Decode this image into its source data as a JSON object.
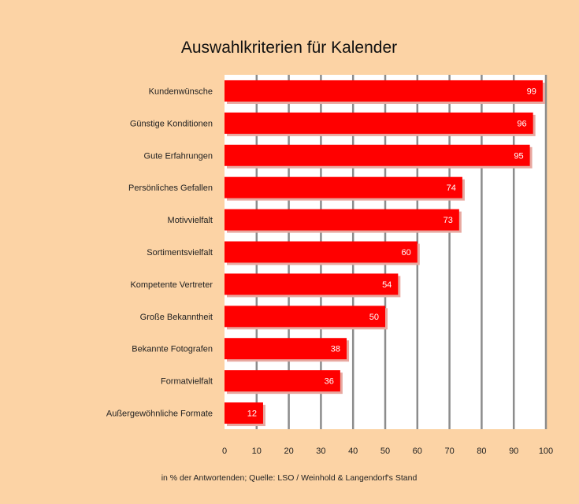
{
  "chart_data": {
    "type": "bar",
    "orientation": "horizontal",
    "title": "Auswahlkriterien für Kalender",
    "categories": [
      "Kundenwünsche",
      "Günstige Konditionen",
      "Gute Erfahrungen",
      "Persönliches Gefallen",
      "Motivvielfalt",
      "Sortimentsvielfalt",
      "Kompetente Vertreter",
      "Große Bekanntheit",
      "Bekannte Fotografen",
      "Formatvielfalt",
      "Außergewöhnliche Formate"
    ],
    "values": [
      99,
      96,
      95,
      74,
      73,
      60,
      54,
      50,
      38,
      36,
      12
    ],
    "value_labels": [
      "99",
      "96",
      "95",
      "74",
      "73",
      "60",
      "54",
      "50",
      "38",
      "36",
      "12"
    ],
    "xlim": [
      0,
      100
    ],
    "x_ticks": [
      "0",
      "10",
      "20",
      "30",
      "40",
      "50",
      "60",
      "70",
      "80",
      "90",
      "100"
    ],
    "xlabel": "",
    "ylabel": "",
    "grid": true,
    "legend": "none",
    "footnote": "in % der Antwortenden; Quelle: LSO / Weinhold & Langendorf's Stand",
    "colors": {
      "background": "#FCD3A5",
      "plot_background": "#FFFFFF",
      "bar": "#FF0000",
      "bar_shadow": "#E8A8A0",
      "grid": "#8C8C8C",
      "value_text": "#FFFFFF"
    }
  }
}
